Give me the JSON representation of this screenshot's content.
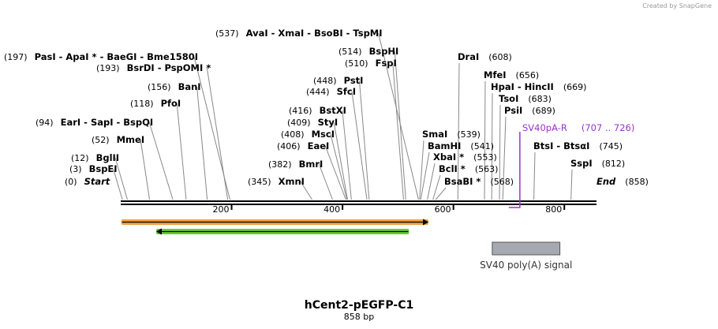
{
  "credit": "Created by SnapGene",
  "title": "hCent2-pEGFP-C1",
  "subtitle": "858 bp",
  "total_bp": 858,
  "colors": {
    "line": "#000000",
    "site_line": "#888888",
    "primer": "#9933cc",
    "orange_feature": "#f0a040",
    "green_feature": "#66cc33",
    "polya_fill": "#a6aab0"
  },
  "axis_ticks": [
    {
      "pos": 200,
      "label": "200"
    },
    {
      "pos": 400,
      "label": "400"
    },
    {
      "pos": 600,
      "label": "600"
    },
    {
      "pos": 800,
      "label": "800"
    }
  ],
  "sites": [
    {
      "pos": 0,
      "num": "(0)",
      "names": "Start",
      "italic": true
    },
    {
      "pos": 3,
      "num": "(3)",
      "names": "BspEI"
    },
    {
      "pos": 12,
      "num": "(12)",
      "names": "BglII"
    },
    {
      "pos": 52,
      "num": "(52)",
      "names": "MmeI"
    },
    {
      "pos": 94,
      "num": "(94)",
      "names": "EarI  - SapI  - BspQI"
    },
    {
      "pos": 118,
      "num": "(118)",
      "names": "PfoI"
    },
    {
      "pos": 156,
      "num": "(156)",
      "names": "BanI"
    },
    {
      "pos": 193,
      "num": "(193)",
      "names": "BsrDI  - PspOMI *"
    },
    {
      "pos": 197,
      "num": "(197)",
      "names": "PasI  - ApaI *  - BaeGI  - Bme1580I"
    },
    {
      "pos": 345,
      "num": "(345)",
      "names": "XmnI"
    },
    {
      "pos": 382,
      "num": "(382)",
      "names": "BmrI"
    },
    {
      "pos": 406,
      "num": "(406)",
      "names": "EaeI"
    },
    {
      "pos": 408,
      "num": "(408)",
      "names": "MscI"
    },
    {
      "pos": 409,
      "num": "(409)",
      "names": "StyI"
    },
    {
      "pos": 416,
      "num": "(416)",
      "names": "BstXI"
    },
    {
      "pos": 444,
      "num": "(444)",
      "names": "SfcI"
    },
    {
      "pos": 448,
      "num": "(448)",
      "names": "PstI"
    },
    {
      "pos": 510,
      "num": "(510)",
      "names": "FspI"
    },
    {
      "pos": 514,
      "num": "(514)",
      "names": "BspHI"
    },
    {
      "pos": 537,
      "num": "(537)",
      "names": "AvaI  - XmaI  - BsoBI  - TspMI"
    },
    {
      "pos": 539,
      "num": "(539)",
      "names": "SmaI"
    },
    {
      "pos": 541,
      "num": "(541)",
      "names": "BamHI"
    },
    {
      "pos": 553,
      "num": "(553)",
      "names": "XbaI *"
    },
    {
      "pos": 563,
      "num": "(563)",
      "names": "BclI *"
    },
    {
      "pos": 568,
      "num": "(568)",
      "names": "BsaBI *"
    },
    {
      "pos": 608,
      "num": "(608)",
      "names": "DraI"
    },
    {
      "pos": 656,
      "num": "(656)",
      "names": "MfeI"
    },
    {
      "pos": 669,
      "num": "(669)",
      "names": "HpaI  - HincII"
    },
    {
      "pos": 683,
      "num": "(683)",
      "names": "TsoI"
    },
    {
      "pos": 689,
      "num": "(689)",
      "names": "PsiI"
    },
    {
      "pos": 745,
      "num": "(745)",
      "names": "BtsI  - BtsαI"
    },
    {
      "pos": 812,
      "num": "(812)",
      "names": "SspI"
    },
    {
      "pos": 858,
      "num": "(858)",
      "names": "End",
      "italic": true
    }
  ],
  "primer": {
    "name": "SV40pA-R",
    "range": "(707 .. 726)",
    "start": 707,
    "end": 726
  },
  "features": [
    {
      "name": "orange-feature",
      "start": 1,
      "end": 555
    },
    {
      "name": "green-feature",
      "start": 64,
      "end": 520
    },
    {
      "name": "polya-feature",
      "label": "SV40 poly(A) signal",
      "start": 670,
      "end": 792
    }
  ]
}
